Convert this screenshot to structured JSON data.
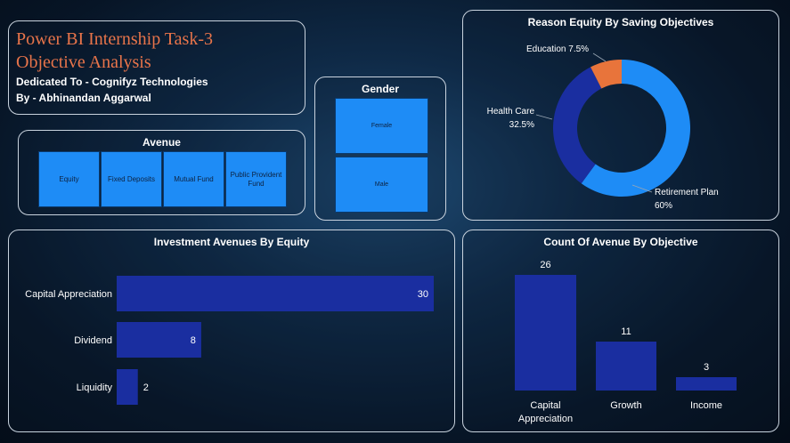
{
  "header": {
    "title_line1": "Power BI Internship Task-3",
    "title_line2": "Objective Analysis",
    "dedicated": "Dedicated To - Cognifyz Technologies",
    "author": "By - Abhinandan Aggarwal"
  },
  "avenue_slicer": {
    "title": "Avenue",
    "options": [
      "Equity",
      "Fixed Deposits",
      "Mutual Fund",
      "Public Provident Fund"
    ]
  },
  "gender_slicer": {
    "title": "Gender",
    "options": [
      "Female",
      "Male"
    ]
  },
  "colors": {
    "accent_orange": "#e8744a",
    "bar_dark_blue": "#1a2ea0",
    "tile_blue": "#1e8cf6",
    "donut_light_blue": "#1e8cf6",
    "donut_dark_blue": "#1a2ea0",
    "donut_orange": "#e8743b"
  },
  "chart_data": [
    {
      "id": "reason-equity",
      "type": "pie",
      "title": "Reason Equity By Saving Objectives",
      "labels": [
        "Retirement Plan",
        "Health Care",
        "Education"
      ],
      "values": [
        60,
        32.5,
        7.5
      ],
      "value_labels": [
        "60%",
        "32.5%",
        "7.5%"
      ]
    },
    {
      "id": "investment-avenues",
      "type": "bar",
      "orientation": "horizontal",
      "title": "Investment Avenues By Equity",
      "categories": [
        "Capital Appreciation",
        "Dividend",
        "Liquidity"
      ],
      "values": [
        30,
        8,
        2
      ],
      "xlim": [
        0,
        30
      ]
    },
    {
      "id": "count-avenue",
      "type": "bar",
      "orientation": "vertical",
      "title": "Count Of Avenue By Objective",
      "categories": [
        "Capital Appreciation",
        "Growth",
        "Income"
      ],
      "values": [
        26,
        11,
        3
      ],
      "ylim": [
        0,
        26
      ]
    }
  ]
}
